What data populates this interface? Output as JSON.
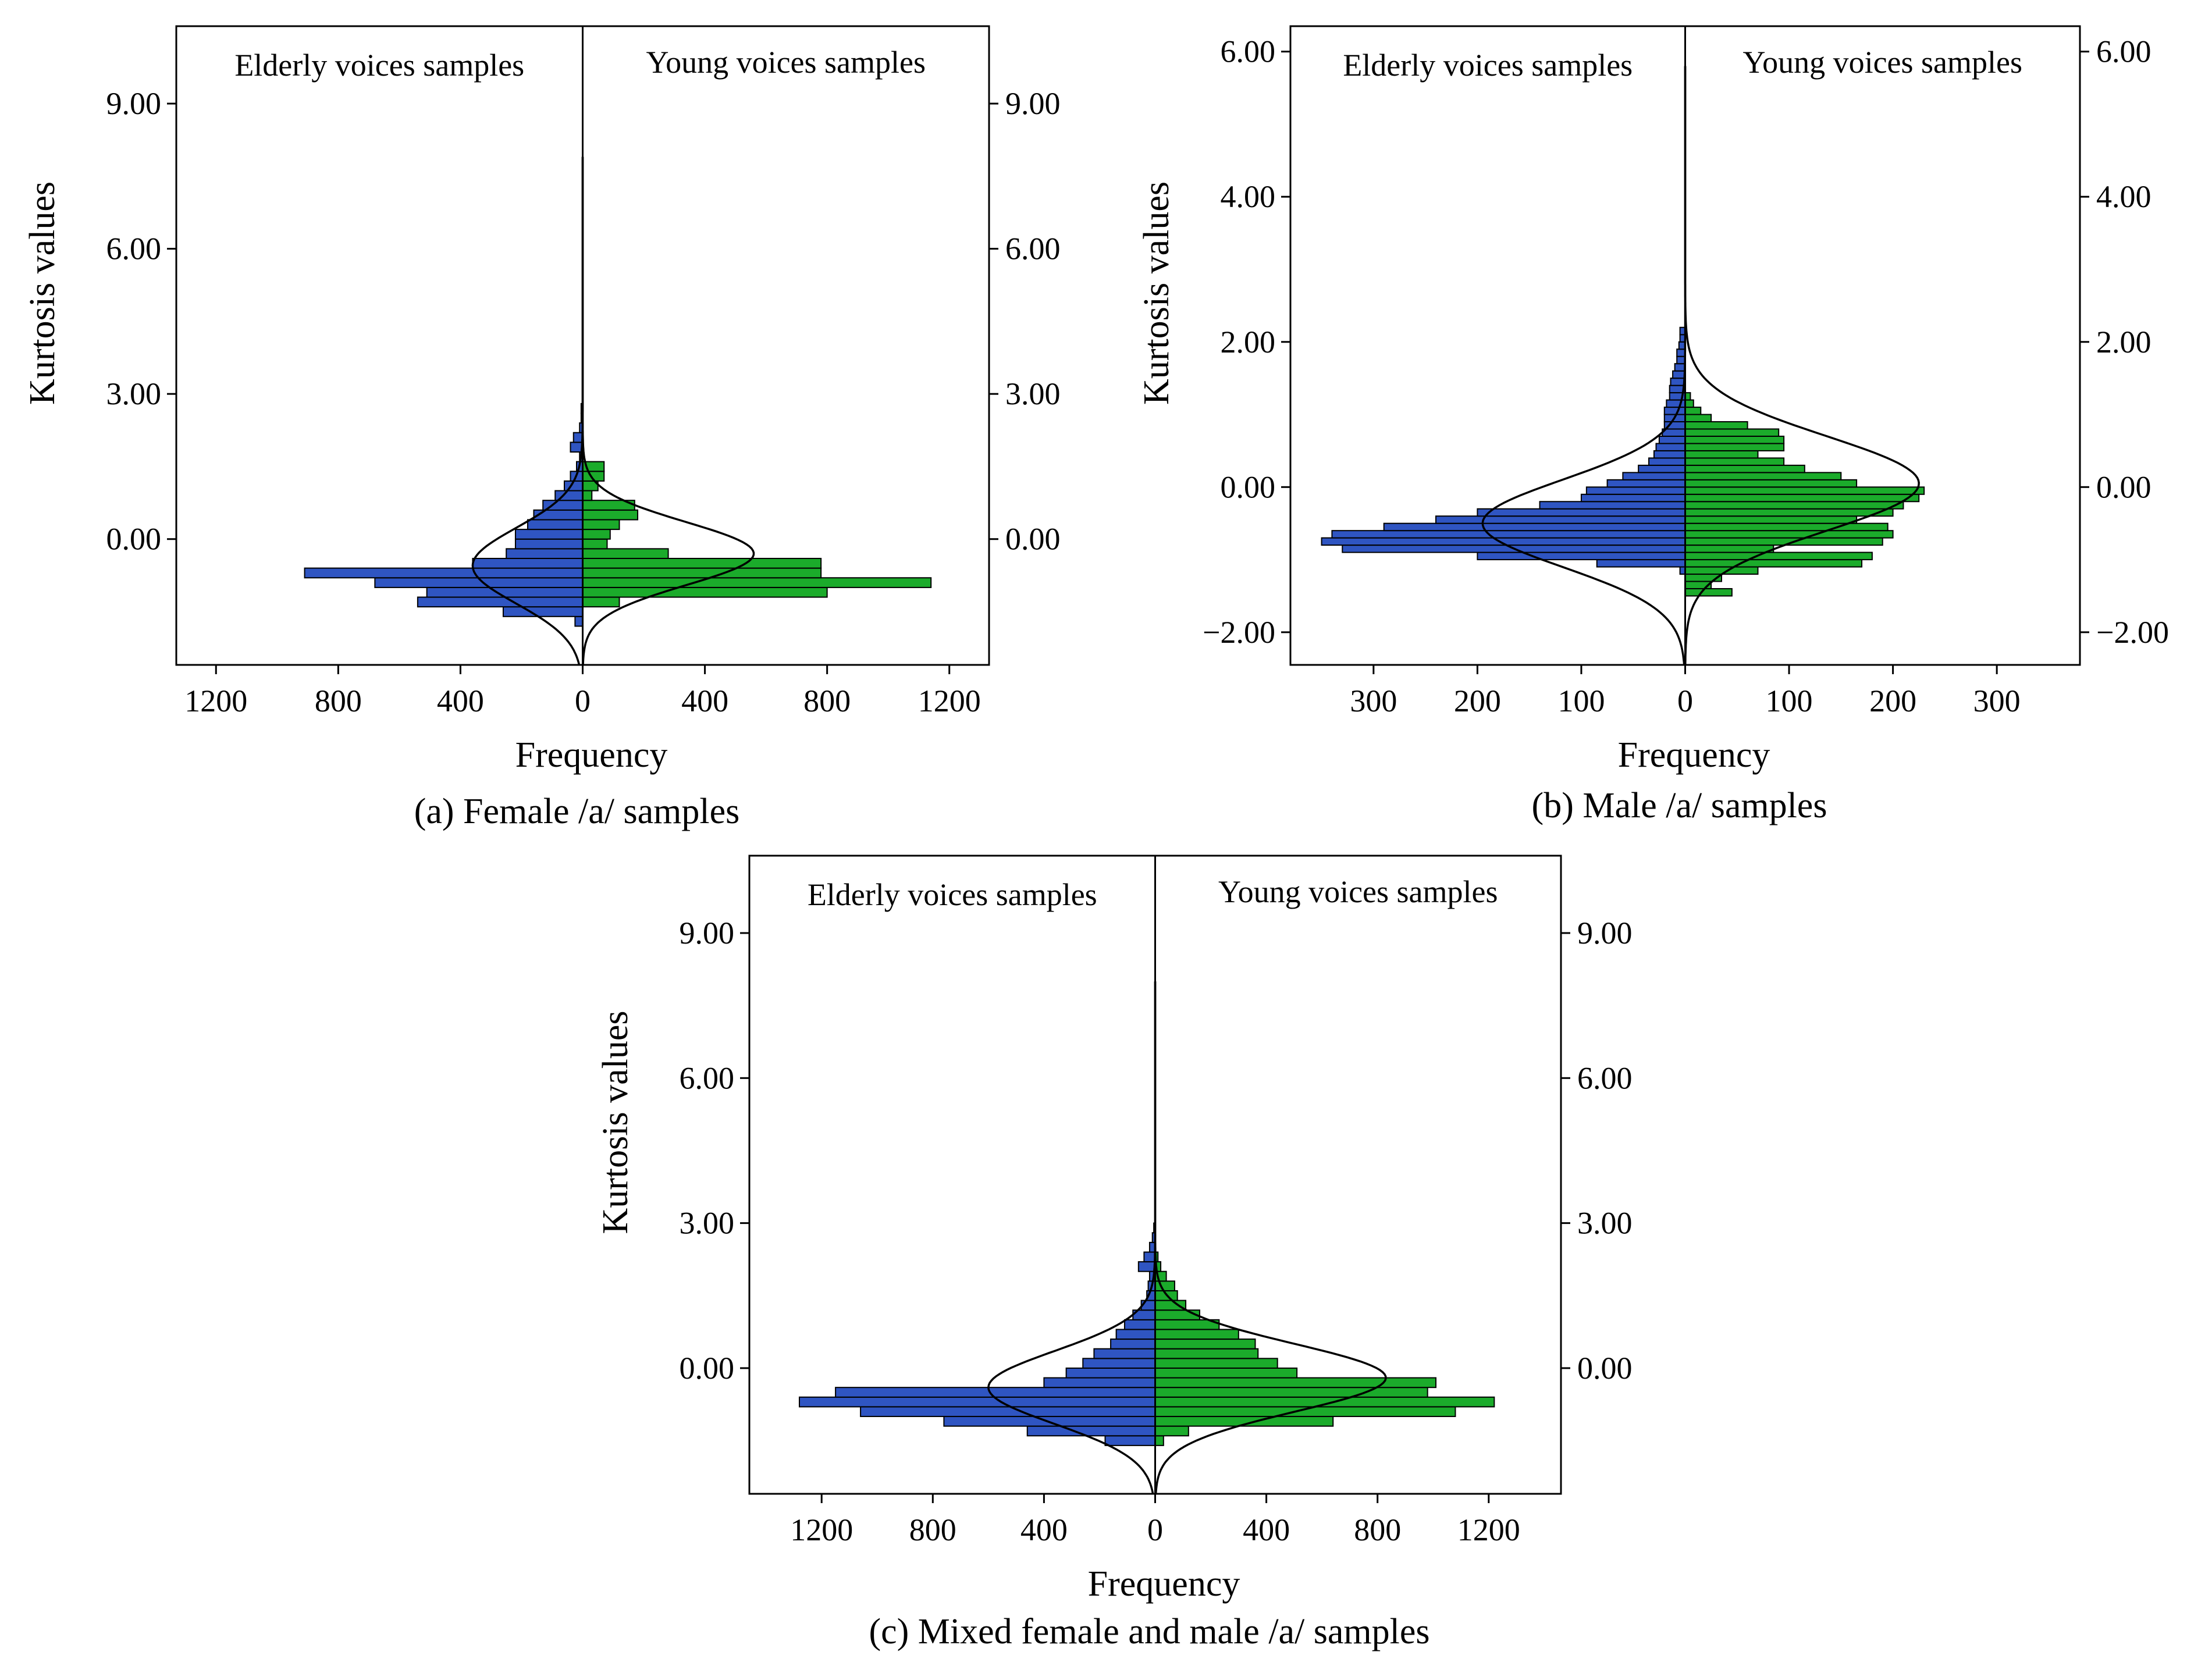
{
  "colors": {
    "elderly": "#2f55c2",
    "young": "#1bab2b"
  },
  "chart_data": [
    {
      "id": "a",
      "type": "bar",
      "orientation": "population-pyramid",
      "caption": "(a) Female /a/ samples",
      "xlabel": "Frequency",
      "ylabel": "Kurtosis values",
      "left_label": "Elderly voices samples",
      "right_label": "Young voices samples",
      "ylim": [
        -2.6,
        10.6
      ],
      "y_ticks": [
        0,
        3,
        6,
        9
      ],
      "y_tick_labels": [
        "0.00",
        "3.00",
        "6.00",
        "9.00"
      ],
      "y_tick_labels_right": [
        "0.00",
        "3.00",
        "6.00",
        "9.00"
      ],
      "x_ticks": [
        1200,
        800,
        400,
        0,
        400,
        800,
        1200
      ],
      "x_tick_labels": [
        "1200",
        "800",
        "400",
        "0",
        "400",
        "800",
        "1200"
      ],
      "xmax": 1330,
      "bin_width": 0.2,
      "elderly_bins_start": -1.8,
      "elderly": [
        25,
        260,
        540,
        510,
        680,
        910,
        360,
        250,
        220,
        220,
        180,
        160,
        130,
        90,
        60,
        40,
        20,
        10,
        40,
        30,
        10,
        5,
        5
      ],
      "young_bins_start": -1.4,
      "young": [
        120,
        800,
        1140,
        780,
        780,
        280,
        80,
        90,
        120,
        180,
        170,
        30,
        50,
        70,
        70
      ],
      "elderly_curve": {
        "mean": -0.55,
        "sd": 0.78,
        "peak": 360
      },
      "young_curve": {
        "mean": -0.3,
        "sd": 0.65,
        "peak": 560
      },
      "curve_ymax": 7.9
    },
    {
      "id": "b",
      "type": "bar",
      "orientation": "population-pyramid",
      "caption": "(b) Male /a/ samples",
      "xlabel": "Frequency",
      "ylabel": "Kurtosis values",
      "left_label": "Elderly voices samples",
      "right_label": "Young voices samples",
      "ylim": [
        -2.45,
        6.35
      ],
      "y_ticks": [
        -2,
        0,
        2,
        4,
        6
      ],
      "y_tick_labels": [
        "−2.00",
        "0.00",
        "2.00",
        "4.00",
        "6.00"
      ],
      "y_tick_labels_right": [
        "−2.00",
        "0.00",
        "2.00",
        "4.00",
        "6.00"
      ],
      "x_ticks": [
        300,
        200,
        100,
        0,
        100,
        200,
        300
      ],
      "x_tick_labels": [
        "300",
        "200",
        "100",
        "0",
        "100",
        "200",
        "300"
      ],
      "xmax": 380,
      "bin_width": 0.1,
      "elderly_bins_start": -1.2,
      "elderly": [
        5,
        85,
        200,
        330,
        350,
        340,
        290,
        240,
        200,
        140,
        100,
        95,
        75,
        60,
        45,
        35,
        30,
        28,
        25,
        22,
        20,
        20,
        20,
        18,
        15,
        15,
        14,
        12,
        10,
        8,
        8,
        6,
        5,
        5
      ],
      "young_bins_start": -1.5,
      "young": [
        45,
        25,
        35,
        70,
        170,
        180,
        85,
        190,
        200,
        195,
        165,
        200,
        210,
        225,
        230,
        165,
        150,
        115,
        95,
        70,
        95,
        95,
        90,
        60,
        25,
        15,
        8,
        5
      ],
      "elderly_curve": {
        "mean": -0.5,
        "sd": 0.6,
        "peak": 195
      },
      "young_curve": {
        "mean": 0.05,
        "sd": 0.65,
        "peak": 225
      },
      "curve_ymax": 5.8
    },
    {
      "id": "c",
      "type": "bar",
      "orientation": "population-pyramid",
      "caption": "(c) Mixed female and male /a/ samples",
      "xlabel": "Frequency",
      "ylabel": "Kurtosis values",
      "left_label": "Elderly voices samples",
      "right_label": "Young voices samples",
      "ylim": [
        -2.6,
        10.6
      ],
      "y_ticks": [
        0,
        3,
        6,
        9
      ],
      "y_tick_labels": [
        "0.00",
        "3.00",
        "6.00",
        "9.00"
      ],
      "y_tick_labels_right": [
        "0.00",
        "3.00",
        "6.00",
        "9.00"
      ],
      "x_ticks": [
        1200,
        800,
        400,
        0,
        400,
        800,
        1200
      ],
      "x_tick_labels": [
        "1200",
        "800",
        "400",
        "0",
        "400",
        "800",
        "1200"
      ],
      "xmax": 1460,
      "bin_width": 0.2,
      "elderly_bins_start": -1.6,
      "elderly": [
        180,
        460,
        760,
        1060,
        1280,
        1150,
        400,
        320,
        260,
        220,
        160,
        140,
        110,
        80,
        50,
        30,
        25,
        20,
        60,
        40,
        20,
        10,
        5
      ],
      "young_bins_start": -1.6,
      "young": [
        30,
        120,
        640,
        1080,
        1220,
        980,
        1010,
        510,
        440,
        370,
        360,
        300,
        230,
        160,
        110,
        80,
        70,
        40,
        20,
        10
      ],
      "elderly_curve": {
        "mean": -0.4,
        "sd": 0.75,
        "peak": 600
      },
      "young_curve": {
        "mean": -0.2,
        "sd": 0.7,
        "peak": 830
      },
      "curve_ymax": 8.0
    }
  ]
}
